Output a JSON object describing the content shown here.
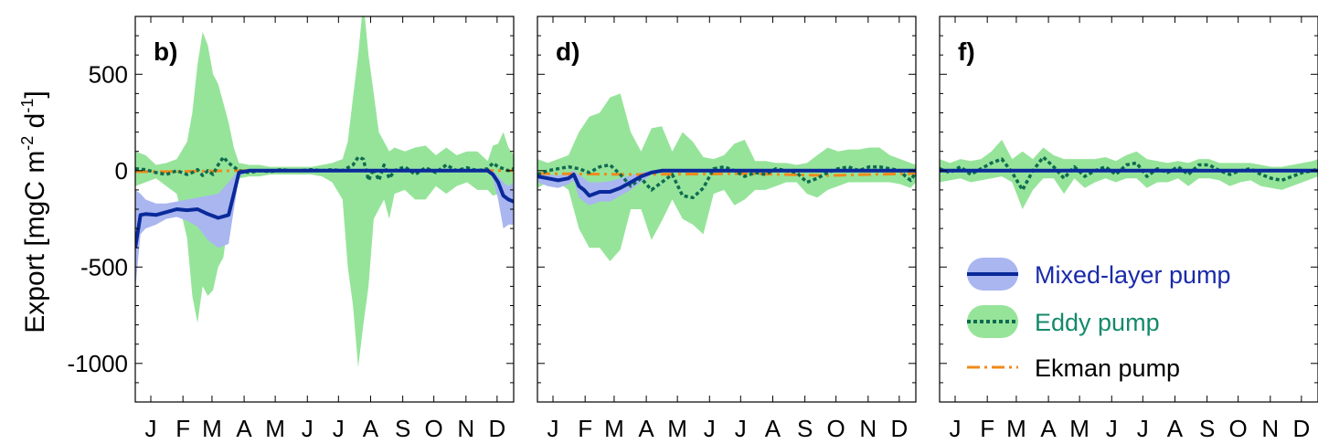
{
  "chart_data": {
    "type": "line",
    "ylabel": {
      "main": "Export [mgC  m",
      "sup1": "-2",
      "mid": "  d",
      "sup2": "-1",
      "end": "]"
    },
    "ylim": [
      -1200,
      800
    ],
    "yticks": [
      -1000,
      -500,
      0,
      500
    ],
    "ytick_labels": [
      "-1000",
      "-500",
      "0",
      "500"
    ],
    "xlim": [
      0,
      365
    ],
    "month_ticks": [
      15,
      46,
      74,
      105,
      135,
      166,
      196,
      227,
      258,
      288,
      319,
      349
    ],
    "month_labels": [
      "J",
      "F",
      "M",
      "A",
      "M",
      "J",
      "J",
      "A",
      "S",
      "O",
      "N",
      "D"
    ],
    "colors": {
      "mixed_line": "#0a2a9a",
      "mixed_fill": "#a9b6f0",
      "eddy_line": "#0f6b50",
      "eddy_fill": "#96e49a",
      "ekman": "#f08a1a",
      "legend_mixed_text": "#1a2aa8",
      "legend_eddy_text": "#138a6a",
      "legend_ekman_text": "#000000"
    },
    "legend": {
      "placement": "lower-right of panel f",
      "items": [
        {
          "key": "mixed",
          "label": "Mixed-layer pump"
        },
        {
          "key": "eddy",
          "label": "Eddy pump"
        },
        {
          "key": "ekman",
          "label": "Ekman pump"
        }
      ]
    },
    "panels": [
      {
        "label": "b)",
        "mixed": {
          "x": [
            0,
            5,
            10,
            20,
            30,
            40,
            50,
            60,
            70,
            80,
            90,
            96,
            100,
            110,
            130,
            160,
            190,
            220,
            250,
            300,
            340,
            345,
            350,
            355,
            360,
            365
          ],
          "y": [
            -400,
            -230,
            -225,
            -230,
            -215,
            -200,
            -205,
            -200,
            -225,
            -245,
            -230,
            -100,
            -10,
            0,
            0,
            0,
            0,
            0,
            0,
            0,
            0,
            -20,
            -60,
            -130,
            -150,
            -160
          ],
          "upper": [
            -100,
            -120,
            -150,
            -170,
            -170,
            -160,
            -150,
            -140,
            -130,
            -120,
            -60,
            -20,
            0,
            0,
            0,
            0,
            0,
            0,
            0,
            0,
            0,
            0,
            -30,
            -60,
            -80,
            -60
          ],
          "lower": [
            -620,
            -330,
            -300,
            -280,
            -250,
            -240,
            -260,
            -290,
            -360,
            -400,
            -380,
            -170,
            -30,
            0,
            0,
            0,
            0,
            0,
            0,
            0,
            0,
            -40,
            -150,
            -300,
            -280,
            -280
          ]
        },
        "eddy": {
          "x": [
            0,
            10,
            20,
            30,
            40,
            50,
            55,
            60,
            65,
            70,
            75,
            80,
            85,
            90,
            95,
            100,
            110,
            120,
            130,
            140,
            150,
            160,
            170,
            180,
            190,
            200,
            205,
            210,
            215,
            220,
            225,
            230,
            235,
            240,
            245,
            250,
            260,
            270,
            280,
            290,
            300,
            310,
            320,
            330,
            340,
            345,
            350,
            355,
            360,
            365
          ],
          "y": [
            10,
            5,
            -10,
            -20,
            0,
            -20,
            -10,
            5,
            -25,
            0,
            -20,
            30,
            70,
            40,
            20,
            0,
            -10,
            0,
            -5,
            5,
            0,
            0,
            5,
            0,
            5,
            0,
            15,
            30,
            70,
            60,
            -50,
            10,
            -50,
            30,
            -40,
            0,
            20,
            -20,
            15,
            -10,
            30,
            0,
            15,
            0,
            10,
            40,
            20,
            10,
            0,
            10
          ],
          "upper": [
            100,
            80,
            30,
            40,
            60,
            150,
            300,
            550,
            720,
            650,
            500,
            450,
            350,
            250,
            120,
            40,
            30,
            30,
            20,
            20,
            20,
            20,
            20,
            30,
            40,
            60,
            150,
            380,
            600,
            880,
            600,
            400,
            200,
            150,
            100,
            120,
            100,
            120,
            130,
            80,
            120,
            80,
            100,
            100,
            50,
            130,
            140,
            200,
            120,
            80
          ],
          "lower": [
            -80,
            -60,
            -40,
            -80,
            -120,
            -350,
            -650,
            -790,
            -600,
            -650,
            -620,
            -500,
            -450,
            -250,
            -120,
            -40,
            -30,
            -30,
            -20,
            -20,
            -20,
            -20,
            -20,
            -30,
            -60,
            -150,
            -500,
            -700,
            -1020,
            -800,
            -600,
            -250,
            -200,
            -150,
            -250,
            -120,
            -100,
            -150,
            -150,
            -80,
            -120,
            -80,
            -60,
            -100,
            -100,
            -130,
            -120,
            -150,
            -140,
            -80
          ]
        },
        "ekman": {
          "x": [
            0,
            30,
            60,
            100,
            365
          ],
          "y": [
            -5,
            -5,
            -3,
            0,
            0
          ]
        }
      },
      {
        "label": "d)",
        "mixed": {
          "x": [
            0,
            10,
            20,
            30,
            35,
            40,
            45,
            50,
            55,
            60,
            70,
            80,
            90,
            100,
            110,
            120,
            365
          ],
          "y": [
            -30,
            -40,
            -50,
            -40,
            -20,
            -80,
            -100,
            -130,
            -120,
            -110,
            -110,
            -90,
            -60,
            -30,
            -10,
            0,
            0
          ],
          "upper": [
            -10,
            -20,
            -25,
            -10,
            0,
            -20,
            -40,
            -60,
            -60,
            -60,
            -55,
            -40,
            -25,
            -10,
            0,
            0,
            0
          ],
          "lower": [
            -60,
            -80,
            -90,
            -70,
            -50,
            -140,
            -160,
            -180,
            -170,
            -160,
            -160,
            -130,
            -100,
            -60,
            -20,
            0,
            0
          ]
        },
        "eddy": {
          "x": [
            0,
            10,
            20,
            30,
            40,
            50,
            60,
            70,
            80,
            90,
            100,
            110,
            120,
            130,
            140,
            150,
            160,
            170,
            180,
            190,
            200,
            210,
            220,
            230,
            240,
            250,
            260,
            270,
            280,
            290,
            300,
            310,
            320,
            330,
            340,
            350,
            355,
            360,
            365
          ],
          "y": [
            -20,
            0,
            10,
            20,
            10,
            -10,
            20,
            30,
            -20,
            -80,
            -40,
            -100,
            -60,
            -20,
            -130,
            -140,
            -90,
            10,
            20,
            0,
            -30,
            -10,
            -20,
            10,
            0,
            -10,
            -60,
            -40,
            -10,
            10,
            20,
            0,
            20,
            20,
            10,
            0,
            -30,
            -50,
            -10
          ],
          "upper": [
            60,
            40,
            60,
            80,
            200,
            280,
            300,
            380,
            400,
            200,
            100,
            220,
            230,
            100,
            200,
            150,
            70,
            60,
            80,
            140,
            160,
            50,
            50,
            40,
            40,
            30,
            40,
            80,
            120,
            100,
            110,
            110,
            120,
            120,
            80,
            60,
            50,
            40,
            30
          ],
          "lower": [
            -90,
            -60,
            -60,
            -100,
            -300,
            -400,
            -400,
            -470,
            -410,
            -200,
            -200,
            -360,
            -260,
            -150,
            -250,
            -280,
            -330,
            -120,
            -100,
            -180,
            -150,
            -100,
            -100,
            -80,
            -60,
            -60,
            -120,
            -140,
            -100,
            -80,
            -60,
            -60,
            -60,
            -60,
            -60,
            -70,
            -80,
            -90,
            -60
          ]
        },
        "ekman": {
          "x": [
            0,
            100,
            200,
            280,
            320,
            365
          ],
          "y": [
            -15,
            -20,
            -15,
            -25,
            -20,
            -15
          ]
        }
      },
      {
        "label": "f)",
        "mixed": {
          "x": [
            0,
            365
          ],
          "y": [
            0,
            0
          ],
          "upper": [
            0,
            0
          ],
          "lower": [
            0,
            0
          ]
        },
        "eddy": {
          "x": [
            0,
            10,
            20,
            30,
            40,
            50,
            60,
            70,
            80,
            90,
            100,
            110,
            120,
            130,
            140,
            150,
            160,
            170,
            180,
            190,
            200,
            210,
            220,
            230,
            240,
            250,
            260,
            270,
            280,
            290,
            300,
            310,
            320,
            330,
            340,
            350,
            360,
            365
          ],
          "y": [
            10,
            -10,
            20,
            -20,
            10,
            40,
            60,
            -10,
            -100,
            0,
            70,
            20,
            -40,
            20,
            -30,
            0,
            20,
            -20,
            30,
            40,
            -30,
            10,
            -10,
            20,
            -20,
            30,
            30,
            0,
            -20,
            0,
            10,
            -20,
            -40,
            -50,
            -30,
            -10,
            0,
            10
          ],
          "upper": [
            60,
            40,
            60,
            50,
            60,
            100,
            160,
            60,
            100,
            60,
            120,
            80,
            60,
            60,
            60,
            60,
            70,
            50,
            80,
            100,
            60,
            50,
            40,
            50,
            40,
            60,
            60,
            40,
            40,
            40,
            40,
            30,
            20,
            20,
            30,
            40,
            50,
            60
          ],
          "lower": [
            -60,
            -50,
            -40,
            -60,
            -50,
            -40,
            -30,
            -60,
            -200,
            -100,
            -40,
            -40,
            -120,
            -40,
            -90,
            -60,
            -40,
            -60,
            -40,
            -40,
            -90,
            -60,
            -60,
            -40,
            -80,
            -40,
            -40,
            -50,
            -80,
            -60,
            -50,
            -80,
            -90,
            -100,
            -80,
            -60,
            -40,
            -30
          ]
        },
        "ekman": {
          "x": [
            0,
            365
          ],
          "y": [
            0,
            0
          ]
        }
      }
    ]
  }
}
